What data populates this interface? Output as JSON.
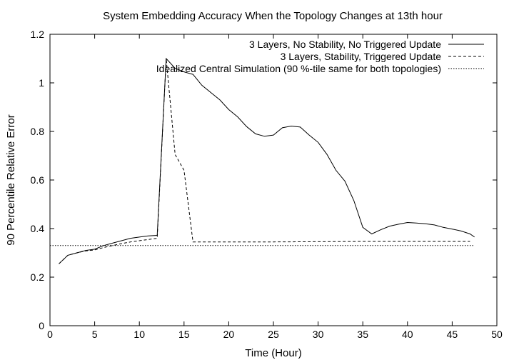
{
  "chart_data": {
    "type": "line",
    "title": "System Embedding Accuracy When the Topology Changes at 13th hour",
    "xlabel": "Time (Hour)",
    "ylabel": "90 Percentile Relative Error",
    "xlim": [
      0,
      50
    ],
    "ylim": [
      0,
      1.2
    ],
    "xticks": [
      "0",
      "5",
      "10",
      "15",
      "20",
      "25",
      "30",
      "35",
      "40",
      "45",
      "50"
    ],
    "yticks": [
      "0",
      "0.2",
      "0.4",
      "0.6",
      "0.8",
      "1",
      "1.2"
    ],
    "grid": false,
    "legend_position": "top-right",
    "series": [
      {
        "name": "3 Layers, No Stability, No Triggered Update",
        "style": "solid",
        "x": [
          1,
          2,
          3,
          4,
          5,
          6,
          7,
          8,
          9,
          10,
          11,
          12,
          13,
          14,
          15,
          16,
          17,
          18,
          19,
          20,
          21,
          22,
          23,
          24,
          25,
          26,
          27,
          28,
          29,
          30,
          31,
          32,
          33,
          34,
          35,
          36,
          37,
          38,
          39,
          40,
          41,
          42,
          43,
          44,
          45,
          46,
          47,
          47.5
        ],
        "values": [
          0.255,
          0.29,
          0.3,
          0.31,
          0.315,
          0.33,
          0.34,
          0.35,
          0.36,
          0.365,
          0.37,
          0.372,
          1.1,
          1.06,
          1.045,
          1.035,
          0.99,
          0.96,
          0.93,
          0.89,
          0.86,
          0.82,
          0.79,
          0.78,
          0.785,
          0.815,
          0.822,
          0.818,
          0.785,
          0.755,
          0.705,
          0.64,
          0.595,
          0.515,
          0.405,
          0.378,
          0.395,
          0.41,
          0.418,
          0.425,
          0.423,
          0.42,
          0.415,
          0.405,
          0.398,
          0.39,
          0.378,
          0.365
        ]
      },
      {
        "name": "3 Layers, Stability, Triggered Update",
        "style": "dashed",
        "x": [
          1,
          2,
          3,
          4,
          5,
          6,
          7,
          8,
          9,
          10,
          11,
          12,
          13,
          14,
          15,
          16,
          20,
          25,
          30,
          35,
          40,
          45,
          47
        ],
        "values": [
          0.255,
          0.29,
          0.3,
          0.308,
          0.312,
          0.322,
          0.33,
          0.338,
          0.345,
          0.35,
          0.355,
          0.36,
          1.1,
          0.705,
          0.64,
          0.345,
          0.345,
          0.345,
          0.346,
          0.347,
          0.347,
          0.347,
          0.347
        ]
      },
      {
        "name": "Idealized Central Simulation (90 %-tile same for both topologies)",
        "style": "dotted",
        "x": [
          0,
          47.5
        ],
        "values": [
          0.33,
          0.33
        ]
      }
    ]
  }
}
